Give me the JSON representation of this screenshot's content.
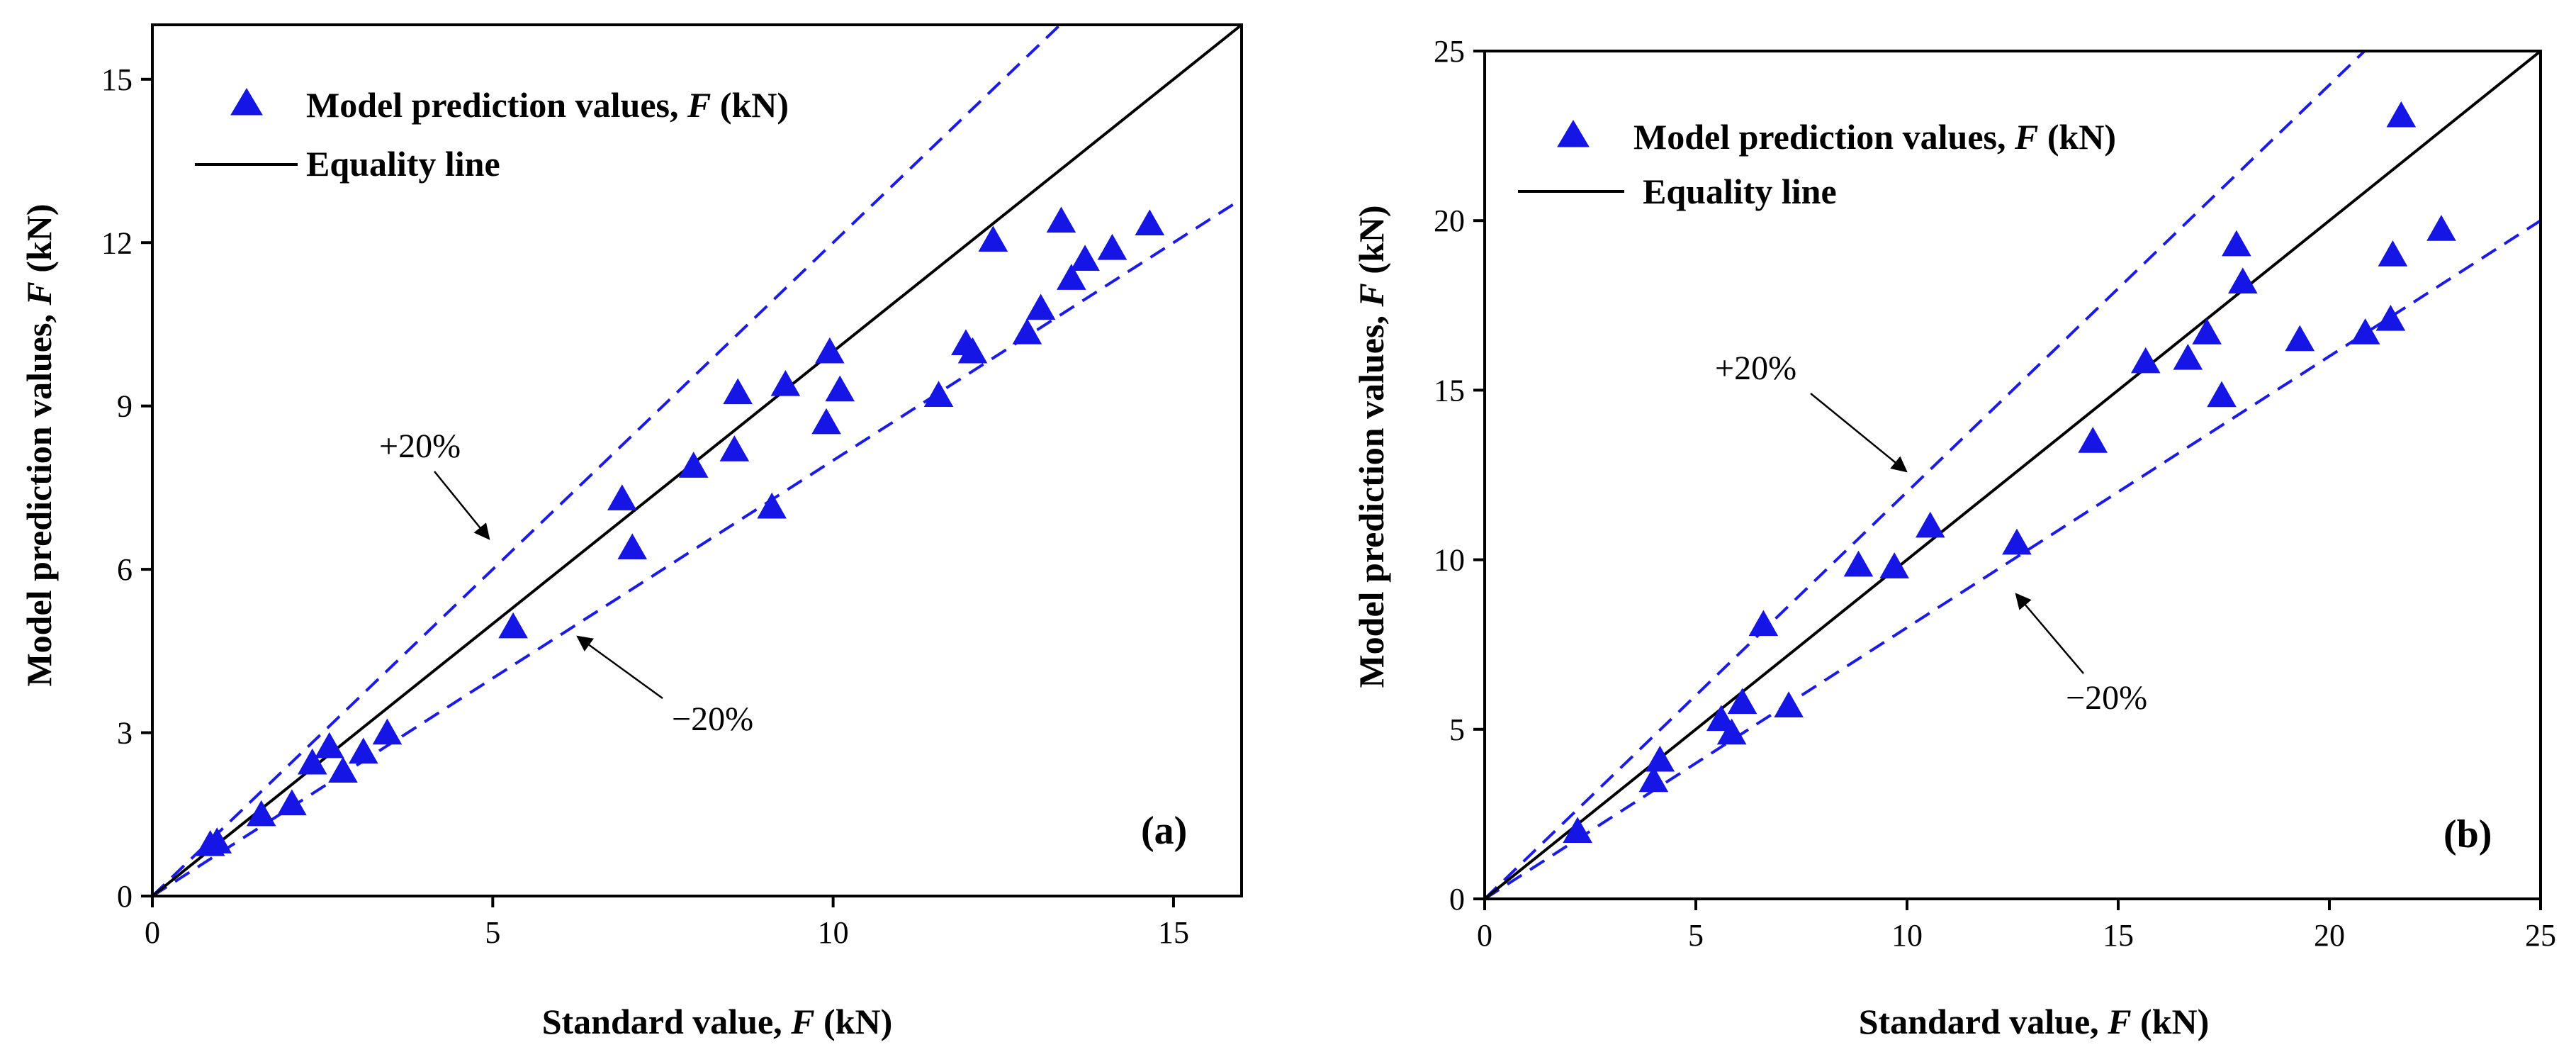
{
  "chart_data": [
    {
      "type": "scatter",
      "panel_label": "(a)",
      "xlabel_prefix": "Standard value, ",
      "xlabel_var": "F",
      "xlabel_suffix": " (kN)",
      "ylabel_prefix": "Model prediction values, ",
      "ylabel_var": "F",
      "ylabel_suffix": " (kN)",
      "xlim": [
        0,
        16
      ],
      "ylim": [
        0,
        16
      ],
      "xticks": [
        0,
        5,
        10,
        15
      ],
      "yticks": [
        0,
        3,
        6,
        9,
        12,
        15
      ],
      "legend": {
        "position": "top-left",
        "marker_label_prefix": "Model prediction values, ",
        "marker_label_var": "F",
        "marker_label_suffix": " (kN)",
        "line_label": "Equality line"
      },
      "annotations": {
        "plus": "+20%",
        "minus": "−20%"
      },
      "series": [
        {
          "name": "Model prediction values, F (kN)",
          "points": [
            [
              0.85,
              0.95
            ],
            [
              0.95,
              1.0
            ],
            [
              1.6,
              1.5
            ],
            [
              2.05,
              1.7
            ],
            [
              2.35,
              2.45
            ],
            [
              2.6,
              2.75
            ],
            [
              2.8,
              2.3
            ],
            [
              3.1,
              2.65
            ],
            [
              3.45,
              3.0
            ],
            [
              5.3,
              4.95
            ],
            [
              6.9,
              7.3
            ],
            [
              7.05,
              6.4
            ],
            [
              7.95,
              7.9
            ],
            [
              8.55,
              8.2
            ],
            [
              8.6,
              9.25
            ],
            [
              9.1,
              7.15
            ],
            [
              9.3,
              9.4
            ],
            [
              9.9,
              8.7
            ],
            [
              9.95,
              10.0
            ],
            [
              10.1,
              9.3
            ],
            [
              11.55,
              9.2
            ],
            [
              11.95,
              10.15
            ],
            [
              12.05,
              10.0
            ],
            [
              12.35,
              12.05
            ],
            [
              12.85,
              10.35
            ],
            [
              13.05,
              10.8
            ],
            [
              13.35,
              12.4
            ],
            [
              13.5,
              11.35
            ],
            [
              13.7,
              11.7
            ],
            [
              14.1,
              11.9
            ],
            [
              14.65,
              12.35
            ]
          ]
        }
      ]
    },
    {
      "type": "scatter",
      "panel_label": "(b)",
      "xlabel_prefix": "Standard value, ",
      "xlabel_var": "F",
      "xlabel_suffix": " (kN)",
      "ylabel_prefix": "Model prediction values, ",
      "ylabel_var": "F",
      "ylabel_suffix": " (kN)",
      "xlim": [
        0,
        25
      ],
      "ylim": [
        0,
        25
      ],
      "xticks": [
        0,
        5,
        10,
        15,
        20,
        25
      ],
      "yticks": [
        0,
        5,
        10,
        15,
        20,
        25
      ],
      "legend": {
        "position": "top-left",
        "marker_label_prefix": "Model prediction values, ",
        "marker_label_var": "F",
        "marker_label_suffix": " (kN)",
        "line_label": "Equality line"
      },
      "annotations": {
        "plus": "+20%",
        "minus": "−20%"
      },
      "series": [
        {
          "name": "Model prediction values, F (kN)",
          "points": [
            [
              2.2,
              2.0
            ],
            [
              4.0,
              3.5
            ],
            [
              4.15,
              4.1
            ],
            [
              5.6,
              5.3
            ],
            [
              5.85,
              4.9
            ],
            [
              6.1,
              5.8
            ],
            [
              6.6,
              8.1
            ],
            [
              7.2,
              5.7
            ],
            [
              8.85,
              9.85
            ],
            [
              9.7,
              9.8
            ],
            [
              10.55,
              11.0
            ],
            [
              12.6,
              10.5
            ],
            [
              14.4,
              13.5
            ],
            [
              15.65,
              15.85
            ],
            [
              16.65,
              15.95
            ],
            [
              17.1,
              16.7
            ],
            [
              17.45,
              14.85
            ],
            [
              17.8,
              19.3
            ],
            [
              17.95,
              18.2
            ],
            [
              19.3,
              16.5
            ],
            [
              20.85,
              16.7
            ],
            [
              21.45,
              17.1
            ],
            [
              21.5,
              19.0
            ],
            [
              21.7,
              23.1
            ],
            [
              22.65,
              19.75
            ]
          ]
        }
      ]
    }
  ]
}
